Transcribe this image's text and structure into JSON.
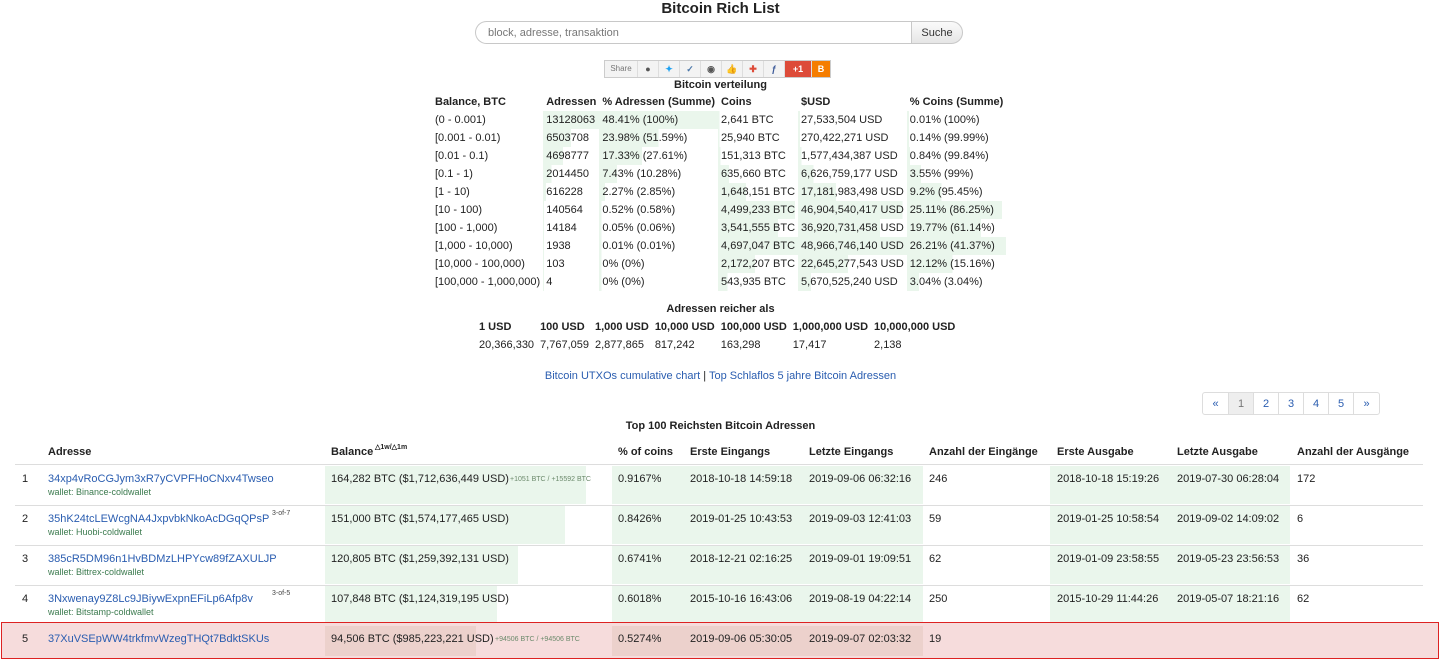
{
  "title": "Bitcoin Rich List",
  "search": {
    "placeholder": "block, adresse, transaktion",
    "button": "Suche"
  },
  "share": {
    "label": "Share",
    "icons": [
      "reddit-icon",
      "twitter-icon",
      "vk-icon",
      "weibo-icon",
      "like-icon",
      "google-plus-icon",
      "facebook-icon",
      "gplus-one-icon",
      "blogger-icon"
    ]
  },
  "distribution": {
    "caption": "Bitcoin verteilung",
    "headers": [
      "Balance, BTC",
      "Adressen",
      "% Adressen (Summe)",
      "Coins",
      "$USD",
      "% Coins (Summe)"
    ],
    "rows": [
      {
        "range": "(0 - 0.001)",
        "addresses": "13128063",
        "pct_addr": "48.41% (100%)",
        "coins": "2,641 BTC",
        "usd": "27,533,504 USD",
        "pct_coins": "0.01% (100%)",
        "addr_fill": 1.0,
        "coins_fill": 0.0
      },
      {
        "range": "[0.001 - 0.01)",
        "addresses": "6503708",
        "pct_addr": "23.98% (51.59%)",
        "coins": "25,940 BTC",
        "usd": "270,422,271 USD",
        "pct_coins": "0.14% (99.99%)",
        "addr_fill": 0.5,
        "coins_fill": 0.01
      },
      {
        "range": "[0.01 - 0.1)",
        "addresses": "4698777",
        "pct_addr": "17.33% (27.61%)",
        "coins": "151,313 BTC",
        "usd": "1,577,434,387 USD",
        "pct_coins": "0.84% (99.84%)",
        "addr_fill": 0.36,
        "coins_fill": 0.03
      },
      {
        "range": "[0.1 - 1)",
        "addresses": "2014450",
        "pct_addr": "7.43% (10.28%)",
        "coins": "635,660 BTC",
        "usd": "6,626,759,177 USD",
        "pct_coins": "3.55% (99%)",
        "addr_fill": 0.15,
        "coins_fill": 0.14
      },
      {
        "range": "[1 - 10)",
        "addresses": "616228",
        "pct_addr": "2.27% (2.85%)",
        "coins": "1,648,151 BTC",
        "usd": "17,181,983,498 USD",
        "pct_coins": "9.2% (95.45%)",
        "addr_fill": 0.05,
        "coins_fill": 0.35
      },
      {
        "range": "[10 - 100)",
        "addresses": "140564",
        "pct_addr": "0.52% (0.58%)",
        "coins": "4,499,233 BTC",
        "usd": "46,904,540,417 USD",
        "pct_coins": "25.11% (86.25%)",
        "addr_fill": 0.01,
        "coins_fill": 0.96
      },
      {
        "range": "[100 - 1,000)",
        "addresses": "14184",
        "pct_addr": "0.05% (0.06%)",
        "coins": "3,541,555 BTC",
        "usd": "36,920,731,458 USD",
        "pct_coins": "19.77% (61.14%)",
        "addr_fill": 0.0,
        "coins_fill": 0.75
      },
      {
        "range": "[1,000 - 10,000)",
        "addresses": "1938",
        "pct_addr": "0.01% (0.01%)",
        "coins": "4,697,047 BTC",
        "usd": "48,966,746,140 USD",
        "pct_coins": "26.21% (41.37%)",
        "addr_fill": 0.0,
        "coins_fill": 1.0
      },
      {
        "range": "[10,000 - 100,000)",
        "addresses": "103",
        "pct_addr": "0% (0%)",
        "coins": "2,172,207 BTC",
        "usd": "22,645,277,543 USD",
        "pct_coins": "12.12% (15.16%)",
        "addr_fill": 0.0,
        "coins_fill": 0.46
      },
      {
        "range": "[100,000 - 1,000,000)",
        "addresses": "4",
        "pct_addr": "0% (0%)",
        "coins": "543,935 BTC",
        "usd": "5,670,525,240 USD",
        "pct_coins": "3.04% (3.04%)",
        "addr_fill": 0.0,
        "coins_fill": 0.12
      }
    ]
  },
  "richer": {
    "caption": "Adressen reicher als",
    "headers": [
      "1 USD",
      "100 USD",
      "1,000 USD",
      "10,000 USD",
      "100,000 USD",
      "1,000,000 USD",
      "10,000,000 USD"
    ],
    "values": [
      "20,366,330",
      "7,767,059",
      "2,877,865",
      "817,242",
      "163,298",
      "17,417",
      "2,138"
    ]
  },
  "links": {
    "utxo": "Bitcoin UTXOs cumulative chart",
    "separator": "|",
    "dormant": "Top Schlaflos 5 jahre Bitcoin Adressen"
  },
  "pagination": [
    "«",
    "1",
    "2",
    "3",
    "4",
    "5",
    "»"
  ],
  "top100": {
    "caption": "Top 100 Reichsten Bitcoin Adressen",
    "headers": {
      "address": "Adresse",
      "balance": "Balance",
      "balance_sup": "△1w/△1m",
      "pct": "% of coins",
      "first_in": "Erste Eingangs",
      "last_in": "Letzte Eingangs",
      "num_in": "Anzahl der Eingänge",
      "first_out": "Erste Ausgabe",
      "last_out": "Letzte Ausgabe",
      "num_out": "Anzahl der Ausgänge"
    },
    "rows": [
      {
        "rank": "1",
        "address": "34xp4vRoCGJym3xR7yCVPFHoCNxv4Twseo",
        "sup": "",
        "wallet": "wallet: Binance-coldwallet",
        "balance": "164,282 BTC ($1,712,636,449 USD)",
        "delta": "+1051 BTC / +15592 BTC",
        "pct": "0.9167%",
        "first_in": "2018-10-18 14:59:18",
        "last_in": "2019-09-06 06:32:16",
        "num_in": "246",
        "first_out": "2018-10-18 15:19:26",
        "last_out": "2019-07-30 06:28:04",
        "num_out": "172",
        "fill": 1.0
      },
      {
        "rank": "2",
        "address": "35hK24tcLEWcgNA4JxpvbkNkoAcDGqQPsP",
        "sup": "3-of-7",
        "wallet": "wallet: Huobi-coldwallet",
        "balance": "151,000 BTC ($1,574,177,465 USD)",
        "delta": "",
        "pct": "0.8426%",
        "first_in": "2019-01-25 10:43:53",
        "last_in": "2019-09-03 12:41:03",
        "num_in": "59",
        "first_out": "2019-01-25 10:58:54",
        "last_out": "2019-09-02 14:09:02",
        "num_out": "6",
        "fill": 0.92
      },
      {
        "rank": "3",
        "address": "385cR5DM96n1HvBDMzLHPYcw89fZAXULJP",
        "sup": "",
        "wallet": "wallet: Bittrex-coldwallet",
        "balance": "120,805 BTC ($1,259,392,131 USD)",
        "delta": "",
        "pct": "0.6741%",
        "first_in": "2018-12-21 02:16:25",
        "last_in": "2019-09-01 19:09:51",
        "num_in": "62",
        "first_out": "2019-01-09 23:58:55",
        "last_out": "2019-05-23 23:56:53",
        "num_out": "36",
        "fill": 0.74
      },
      {
        "rank": "4",
        "address": "3Nxwenay9Z8Lc9JBiywExpnEFiLp6Afp8v",
        "sup": "3-of-5",
        "wallet": "wallet: Bitstamp-coldwallet",
        "balance": "107,848 BTC ($1,124,319,195 USD)",
        "delta": "",
        "pct": "0.6018%",
        "first_in": "2015-10-16 16:43:06",
        "last_in": "2019-08-19 04:22:14",
        "num_in": "250",
        "first_out": "2015-10-29 11:44:26",
        "last_out": "2019-05-07 18:21:16",
        "num_out": "62",
        "fill": 0.66
      },
      {
        "rank": "5",
        "address": "37XuVSEpWW4trkfmvWzegTHQt7BdktSKUs",
        "sup": "",
        "wallet": "",
        "balance": "94,506 BTC ($985,223,221 USD)",
        "delta": "+94506 BTC / +94506 BTC",
        "pct": "0.5274%",
        "first_in": "2019-09-06 05:30:05",
        "last_in": "2019-09-07 02:03:32",
        "num_in": "19",
        "first_out": "",
        "last_out": "",
        "num_out": "",
        "fill": 0.58
      }
    ]
  },
  "colors": {
    "link": "#2a5db0",
    "bar": "#eaf6ec",
    "highlight_border": "#dd2222",
    "highlight_bg": "#f6dcdc"
  }
}
